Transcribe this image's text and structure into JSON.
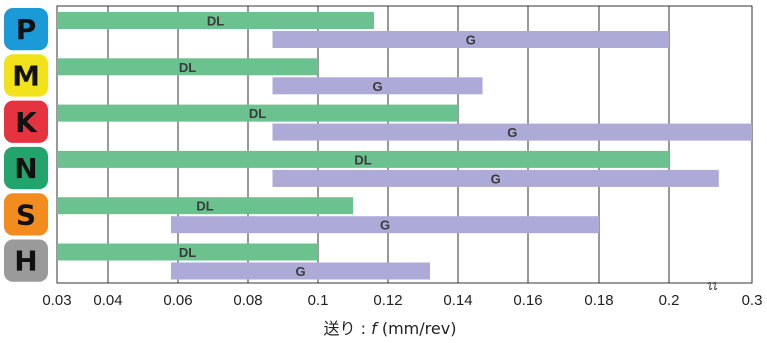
{
  "chart_data": {
    "type": "range-bar",
    "x_ticks": [
      "0.03",
      "0.04",
      "0.06",
      "0.08",
      "0.1",
      "0.12",
      "0.14",
      "0.16",
      "0.18",
      "0.2",
      "0.3"
    ],
    "x_tick_values": [
      0.03,
      0.04,
      0.06,
      0.08,
      0.1,
      0.12,
      0.14,
      0.16,
      0.18,
      0.2,
      0.3
    ],
    "xlabel_prefix": "送り : ",
    "xlabel_var": "f",
    "xlabel_unit": " (mm/rev)",
    "axis_break_between": [
      0.2,
      0.3
    ],
    "grid": true,
    "series": [
      {
        "name": "DL",
        "color": "#6cc28f"
      },
      {
        "name": "G",
        "color": "#aeaad8"
      }
    ],
    "groups": [
      {
        "label": "P",
        "color": "#1a9ad7",
        "bars": [
          {
            "series": "DL",
            "from": 0.03,
            "to": 0.116
          },
          {
            "series": "G",
            "from": 0.087,
            "to": 0.2
          }
        ]
      },
      {
        "label": "M",
        "color": "#f2e21a",
        "bars": [
          {
            "series": "DL",
            "from": 0.03,
            "to": 0.1
          },
          {
            "series": "G",
            "from": 0.087,
            "to": 0.147
          }
        ]
      },
      {
        "label": "K",
        "color": "#e63340",
        "bars": [
          {
            "series": "DL",
            "from": 0.03,
            "to": 0.14
          },
          {
            "series": "G",
            "from": 0.087,
            "to": 0.3
          }
        ]
      },
      {
        "label": "N",
        "color": "#22a56c",
        "bars": [
          {
            "series": "DL",
            "from": 0.03,
            "to": 0.2
          },
          {
            "series": "G",
            "from": 0.087,
            "to": 0.26
          }
        ]
      },
      {
        "label": "S",
        "color": "#f28c1e",
        "bars": [
          {
            "series": "DL",
            "from": 0.03,
            "to": 0.11
          },
          {
            "series": "G",
            "from": 0.058,
            "to": 0.18
          }
        ]
      },
      {
        "label": "H",
        "color": "#9a9a9a",
        "bars": [
          {
            "series": "DL",
            "from": 0.03,
            "to": 0.1
          },
          {
            "series": "G",
            "from": 0.058,
            "to": 0.132
          }
        ]
      }
    ]
  }
}
